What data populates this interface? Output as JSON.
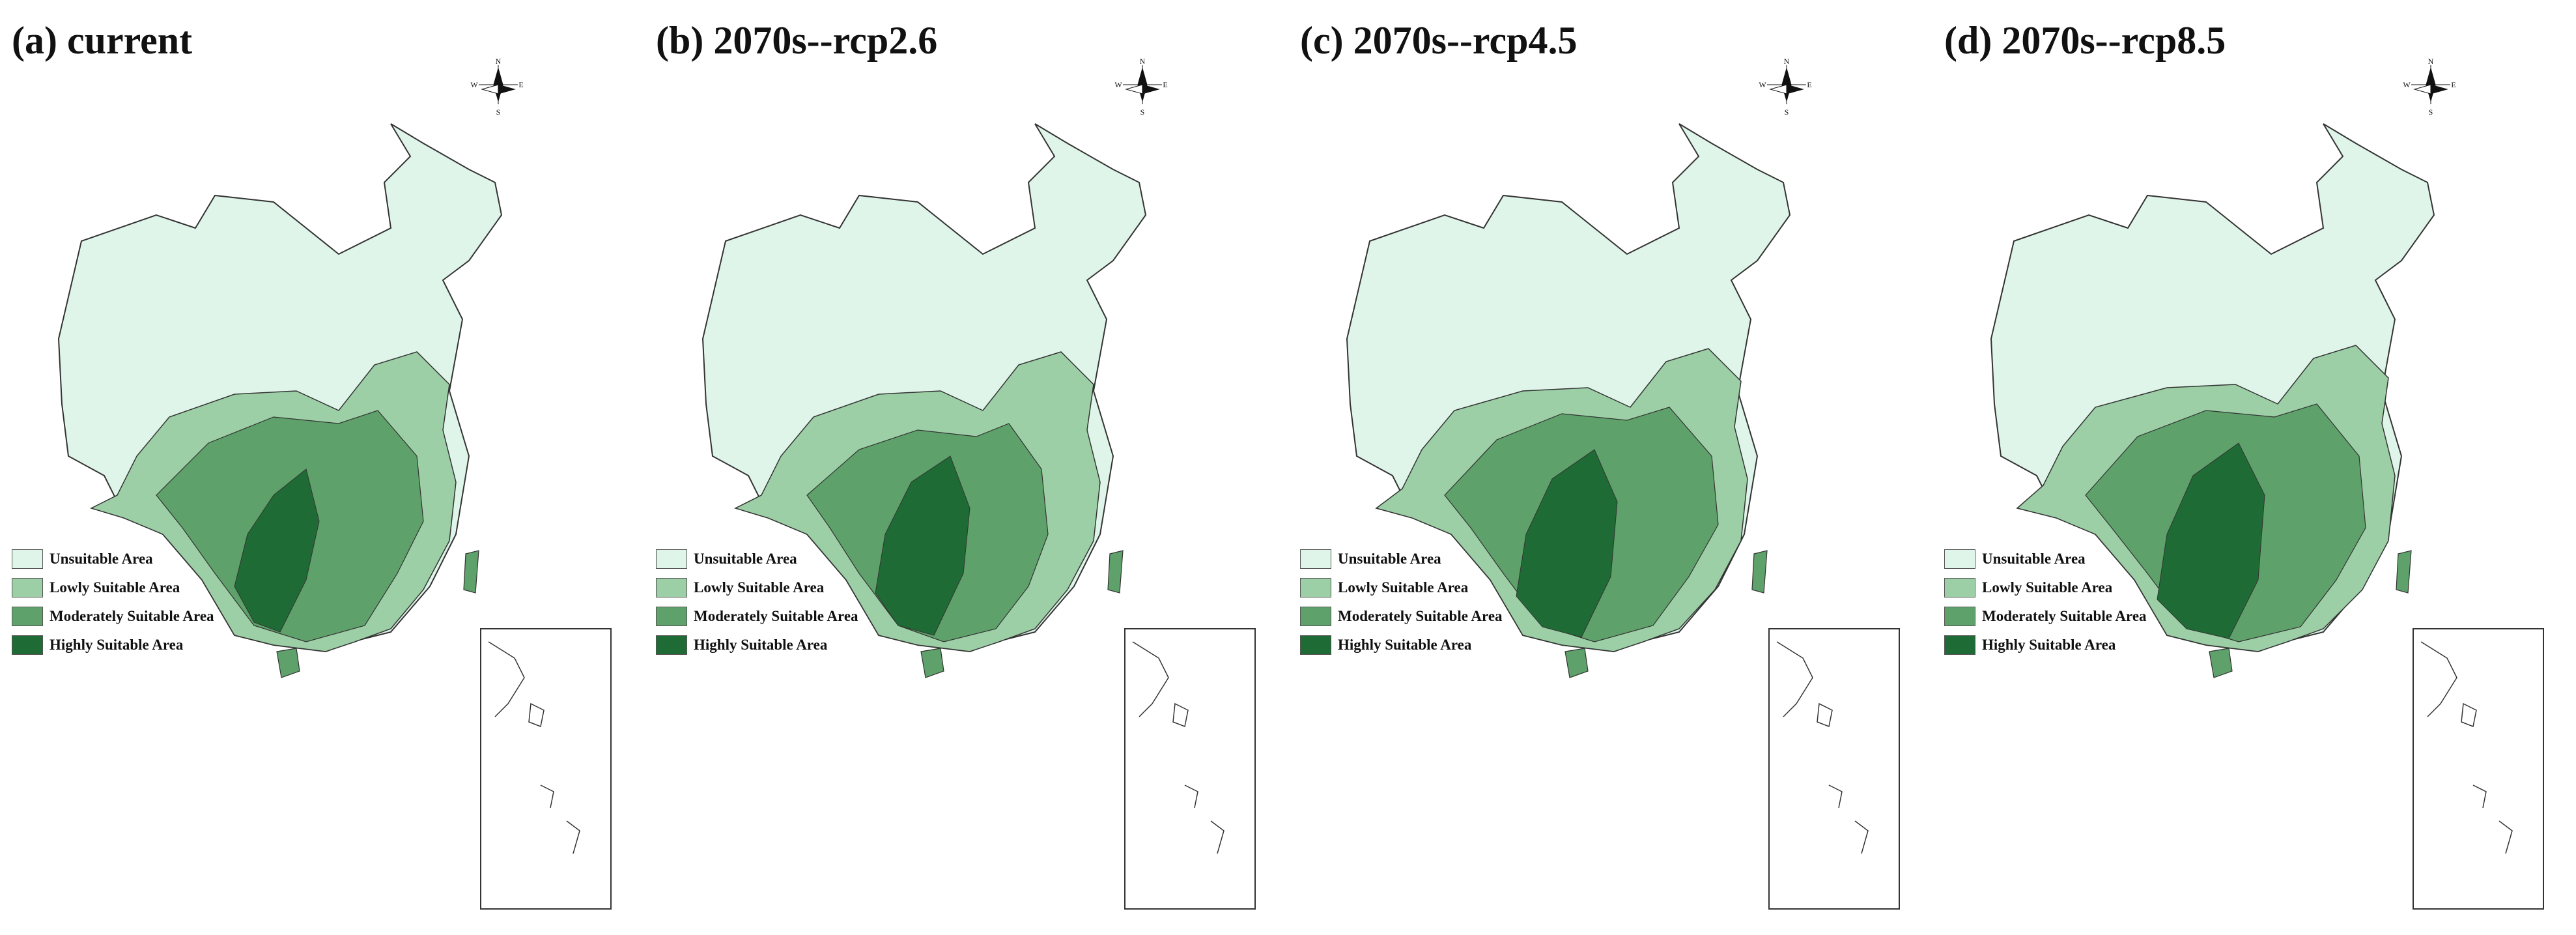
{
  "figure": {
    "panels": [
      {
        "title": "(a) current"
      },
      {
        "title": "(b) 2070s--rcp2.6"
      },
      {
        "title": "(c) 2070s--rcp4.5"
      },
      {
        "title": "(d) 2070s--rcp8.5"
      }
    ],
    "legend": {
      "items": [
        {
          "label": "Unsuitable Area",
          "color": "#e0f5ea"
        },
        {
          "label": "Lowly Suitable Area",
          "color": "#9ccfa6"
        },
        {
          "label": "Moderately Suitable Area",
          "color": "#5ea16a"
        },
        {
          "label": "Highly Suitable Area",
          "color": "#1f6b35"
        }
      ]
    },
    "compass": {
      "labels": {
        "north": "N",
        "east": "E",
        "south": "S",
        "west": "W"
      }
    }
  }
}
